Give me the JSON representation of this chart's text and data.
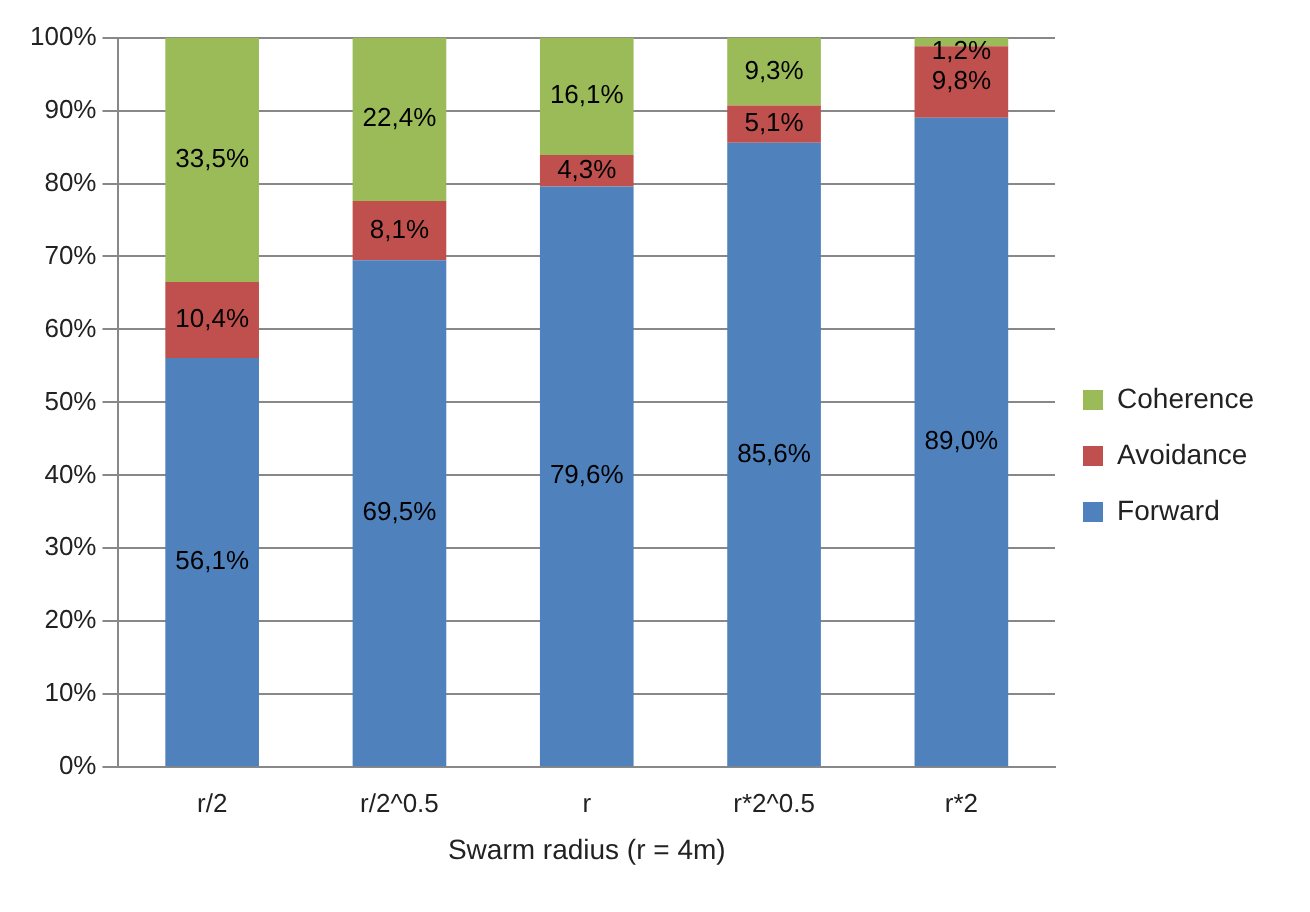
{
  "chart_data": {
    "type": "bar",
    "stacked": true,
    "categories": [
      "r/2",
      "r/2^0.5",
      "r",
      "r*2^0.5",
      "r*2"
    ],
    "xlabel": "Swarm radius (r = 4m)",
    "series": [
      {
        "name": "Forward",
        "color": "#4f81bd",
        "values": [
          56.1,
          69.5,
          79.6,
          85.6,
          89.0
        ],
        "value_labels": [
          "56,1%",
          "69,5%",
          "79,6%",
          "85,6%",
          "89,0%"
        ]
      },
      {
        "name": "Avoidance",
        "color": "#c0504d",
        "values": [
          10.4,
          8.1,
          4.3,
          5.1,
          9.8
        ],
        "value_labels": [
          "10,4%",
          "8,1%",
          "4,3%",
          "5,1%",
          "9,8%"
        ]
      },
      {
        "name": "Coherence",
        "color": "#9bbb59",
        "values": [
          33.5,
          22.4,
          16.1,
          9.3,
          1.2
        ],
        "value_labels": [
          "33,5%",
          "22,4%",
          "16,1%",
          "9,3%",
          "1,2%"
        ]
      }
    ],
    "ylim": [
      0,
      100
    ],
    "yticks": [
      {
        "value": 0,
        "label": "0%"
      },
      {
        "value": 10,
        "label": "10%"
      },
      {
        "value": 20,
        "label": "20%"
      },
      {
        "value": 30,
        "label": "30%"
      },
      {
        "value": 40,
        "label": "40%"
      },
      {
        "value": 50,
        "label": "50%"
      },
      {
        "value": 60,
        "label": "60%"
      },
      {
        "value": 70,
        "label": "70%"
      },
      {
        "value": 80,
        "label": "80%"
      },
      {
        "value": 90,
        "label": "90%"
      },
      {
        "value": 100,
        "label": "100%"
      }
    ],
    "grid": "y",
    "legend": "right"
  }
}
